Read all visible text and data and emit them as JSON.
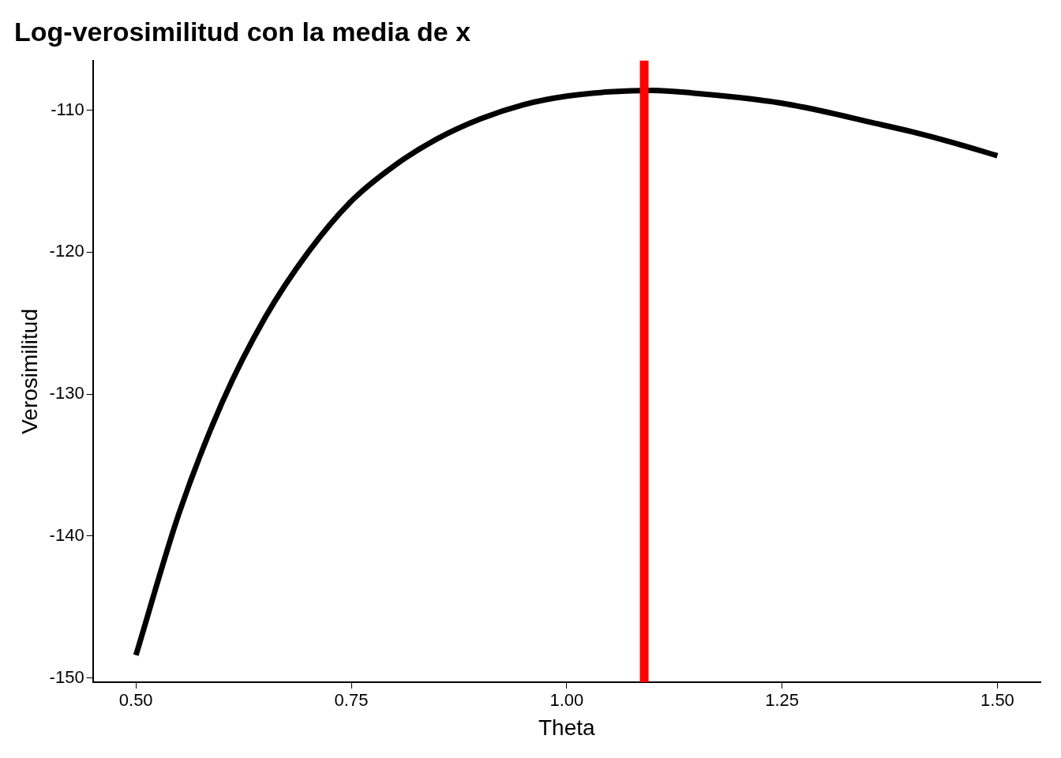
{
  "chart_data": {
    "type": "line",
    "title": "Log-verosimilitud con la media de x",
    "xlabel": "Theta",
    "ylabel": "Verosimilitud",
    "x": [
      0.5,
      0.55,
      0.6,
      0.65,
      0.7,
      0.75,
      0.8,
      0.85,
      0.9,
      0.95,
      1.0,
      1.05,
      1.1,
      1.15,
      1.2,
      1.25,
      1.3,
      1.35,
      1.4,
      1.45,
      1.5
    ],
    "series": [
      {
        "color": "#000000",
        "values": [
          -148.4,
          -138.4,
          -130.6,
          -124.6,
          -120.0,
          -116.4,
          -113.9,
          -112.0,
          -110.6,
          -109.6,
          -109.0,
          -108.7,
          -108.6,
          -108.8,
          -109.1,
          -109.5,
          -110.1,
          -110.8,
          -111.5,
          -112.3,
          -113.2
        ]
      }
    ],
    "xlim": [
      0.45,
      1.55
    ],
    "xticks": [
      {
        "value": 0.5,
        "label": "0.50"
      },
      {
        "value": 0.75,
        "label": "0.75"
      },
      {
        "value": 1,
        "label": "1.00"
      },
      {
        "value": 1.25,
        "label": "1.25"
      },
      {
        "value": 1.5,
        "label": "1.50"
      }
    ],
    "ylim": [
      -150.3,
      -106.5
    ],
    "yticks": [
      -150,
      -140,
      -130,
      -120,
      -110
    ],
    "ref_lines": [
      {
        "axis": "x",
        "value": 1.09,
        "color": "#ff0000"
      }
    ],
    "grid": false,
    "legend": false,
    "marker": "none",
    "line_style": "solid"
  }
}
